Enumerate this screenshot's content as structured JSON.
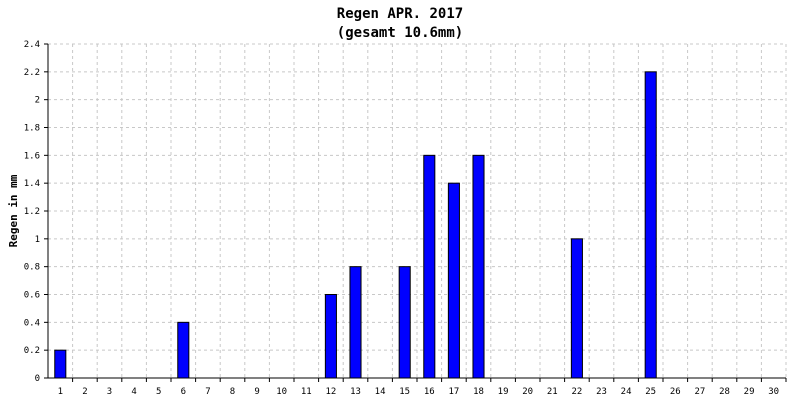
{
  "chart_data": {
    "type": "bar",
    "title": "Regen APR. 2017",
    "subtitle": "(gesamt 10.6mm)",
    "xlabel": "",
    "ylabel": "Regen in mm",
    "categories": [
      "1",
      "2",
      "3",
      "4",
      "5",
      "6",
      "7",
      "8",
      "9",
      "10",
      "11",
      "12",
      "13",
      "14",
      "15",
      "16",
      "17",
      "18",
      "19",
      "20",
      "21",
      "22",
      "23",
      "24",
      "25",
      "26",
      "27",
      "28",
      "29",
      "30"
    ],
    "values": [
      0.2,
      0,
      0,
      0,
      0,
      0.4,
      0,
      0,
      0,
      0,
      0,
      0.6,
      0.8,
      0,
      0.8,
      1.6,
      1.4,
      1.6,
      0,
      0,
      0,
      1.0,
      0,
      0,
      2.2,
      0,
      0,
      0,
      0,
      0
    ],
    "ylim": [
      0,
      2.4
    ],
    "yticks": [
      "0",
      "0.2",
      "0.4",
      "0.6",
      "0.8",
      "1",
      "1.2",
      "1.4",
      "1.6",
      "1.8",
      "2",
      "2.2",
      "2.4"
    ],
    "grid": true,
    "bar_color": "#0000ff"
  }
}
